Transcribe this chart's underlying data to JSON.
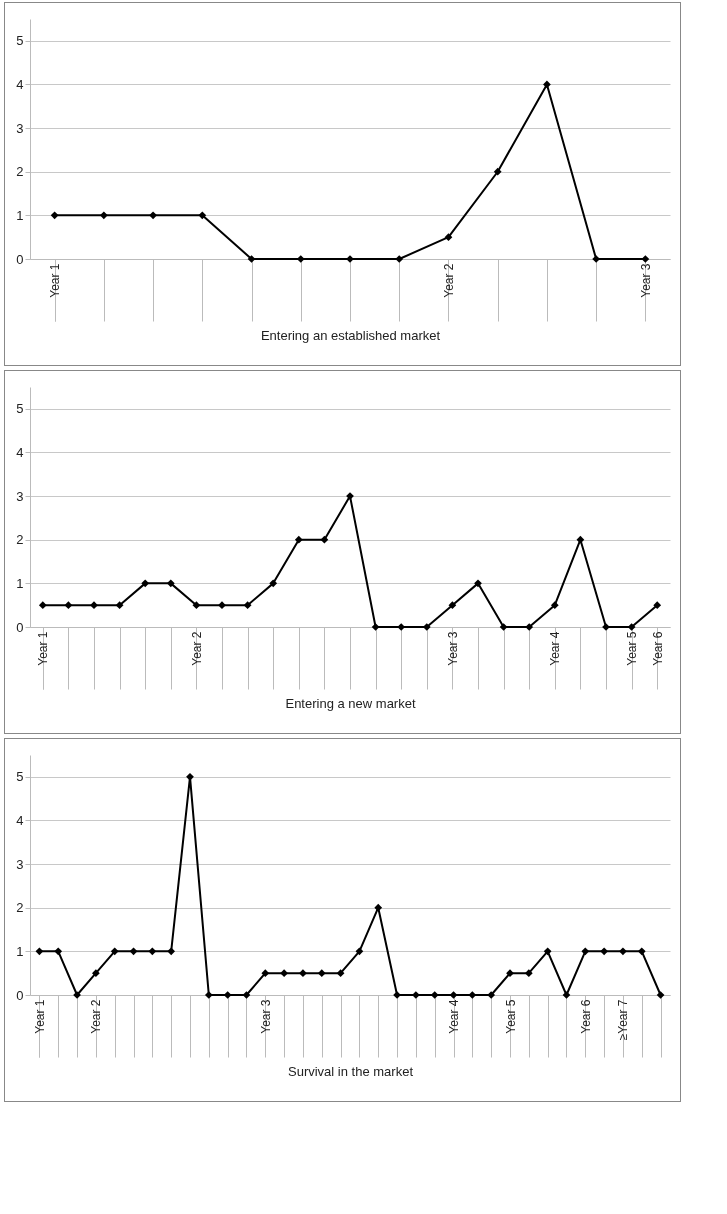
{
  "chart_data": [
    {
      "type": "line",
      "xlabel": "Entering an established market",
      "categories": [
        "Year 1",
        null,
        null,
        null,
        null,
        null,
        null,
        null,
        "Year 2",
        null,
        null,
        null,
        "Year 3"
      ],
      "series": [
        {
          "color": "#000000",
          "values": [
            1,
            1,
            1,
            1,
            0,
            0,
            0,
            0,
            0.5,
            2,
            4,
            0,
            0
          ]
        }
      ],
      "ylim": [
        0,
        5.5
      ],
      "yticks": [
        0,
        1,
        2,
        3,
        4,
        5
      ],
      "grid": "y",
      "marker": "diamond",
      "line_style": "solid"
    },
    {
      "type": "line",
      "xlabel": "Entering a new market",
      "categories": [
        "Year 1",
        null,
        null,
        null,
        null,
        null,
        "Year 2",
        null,
        null,
        null,
        null,
        null,
        null,
        null,
        null,
        null,
        "Year 3",
        null,
        null,
        null,
        "Year 4",
        null,
        null,
        "Year 5",
        "Year 6"
      ],
      "series": [
        {
          "color": "#000000",
          "values": [
            0.5,
            0.5,
            0.5,
            0.5,
            1,
            1,
            0.5,
            0.5,
            0.5,
            1,
            2,
            2,
            3,
            0,
            0,
            0,
            0.5,
            1,
            0,
            0,
            0.5,
            2,
            0,
            0,
            0.5
          ]
        }
      ],
      "ylim": [
        0,
        5.5
      ],
      "yticks": [
        0,
        1,
        2,
        3,
        4,
        5
      ],
      "grid": "y",
      "marker": "diamond",
      "line_style": "solid"
    },
    {
      "type": "line",
      "xlabel": "Survival in the market",
      "categories": [
        "Year 1",
        null,
        null,
        "Year 2",
        null,
        null,
        null,
        null,
        null,
        null,
        null,
        null,
        "Year 3",
        null,
        null,
        null,
        null,
        null,
        null,
        null,
        null,
        null,
        "Year 4",
        null,
        null,
        "Year 5",
        null,
        null,
        null,
        "Year 6",
        null,
        "≥Year 7",
        null,
        null
      ],
      "series": [
        {
          "color": "#000000",
          "values": [
            1,
            1,
            0,
            0.5,
            1,
            1,
            1,
            1,
            5,
            0,
            0,
            0,
            0.5,
            0.5,
            0.5,
            0.5,
            0.5,
            1,
            2,
            0,
            0,
            0,
            0,
            0,
            0,
            0.5,
            0.5,
            1,
            0,
            1,
            1,
            1,
            1,
            0
          ]
        }
      ],
      "ylim": [
        0,
        5.5
      ],
      "yticks": [
        0,
        1,
        2,
        3,
        4,
        5
      ],
      "grid": "y",
      "marker": "diamond",
      "line_style": "solid"
    }
  ]
}
